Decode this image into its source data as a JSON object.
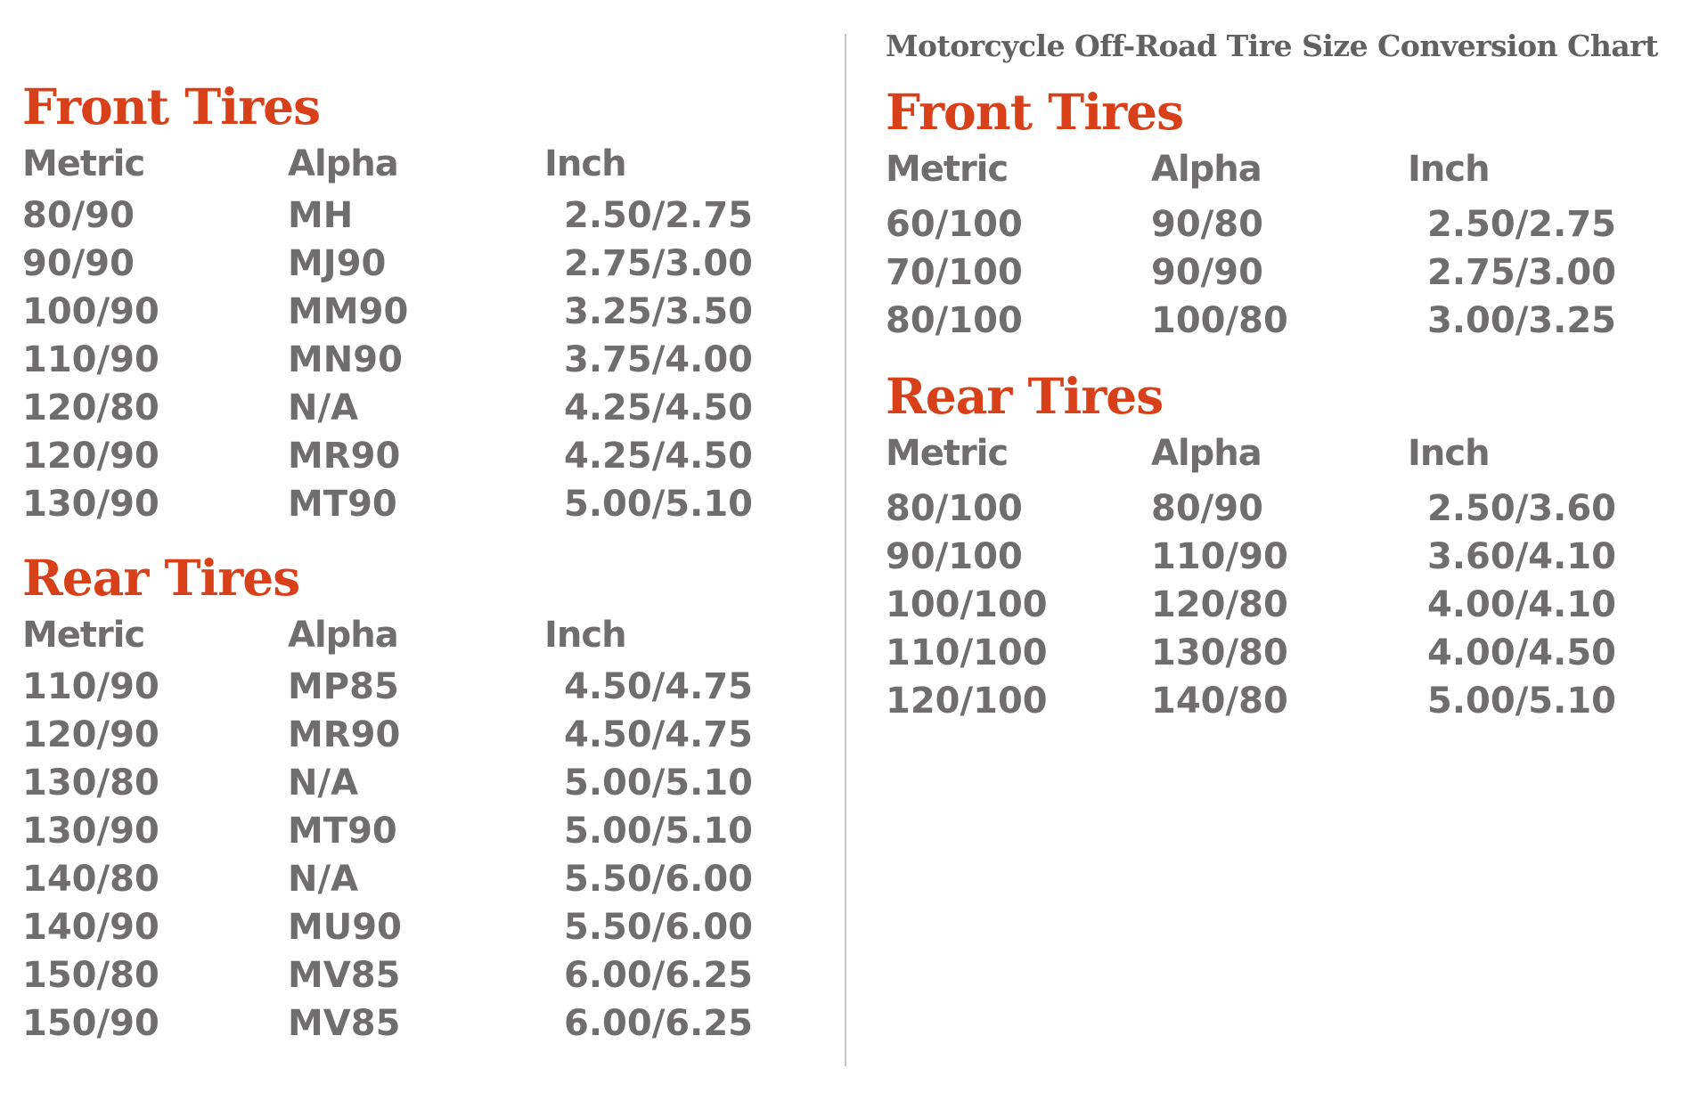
{
  "page": {
    "colors": {
      "accent_red": "#d8401a",
      "header_dark": "#2d2b2c",
      "data_gray": "#6f6d6e",
      "title_gray": "#616161",
      "divider_gray": "#c6c6c6"
    }
  },
  "left_panel": {
    "sections": [
      {
        "heading": "Front Tires",
        "columns": [
          "Metric",
          "Alpha",
          "Inch"
        ],
        "rows": [
          [
            "80/90",
            "MH",
            "2.50/2.75"
          ],
          [
            "90/90",
            "MJ90",
            "2.75/3.00"
          ],
          [
            "100/90",
            "MM90",
            "3.25/3.50"
          ],
          [
            "110/90",
            "MN90",
            "3.75/4.00"
          ],
          [
            "120/80",
            "N/A",
            "4.25/4.50"
          ],
          [
            "120/90",
            "MR90",
            "4.25/4.50"
          ],
          [
            "130/90",
            "MT90",
            "5.00/5.10"
          ]
        ]
      },
      {
        "heading": "Rear Tires",
        "columns": [
          "Metric",
          "Alpha",
          "Inch"
        ],
        "rows": [
          [
            "110/90",
            "MP85",
            "4.50/4.75"
          ],
          [
            "120/90",
            "MR90",
            "4.50/4.75"
          ],
          [
            "130/80",
            "N/A",
            "5.00/5.10"
          ],
          [
            "130/90",
            "MT90",
            "5.00/5.10"
          ],
          [
            "140/80",
            "N/A",
            "5.50/6.00"
          ],
          [
            "140/90",
            "MU90",
            "5.50/6.00"
          ],
          [
            "150/80",
            "MV85",
            "6.00/6.25"
          ],
          [
            "150/90",
            "MV85",
            "6.00/6.25"
          ]
        ]
      }
    ]
  },
  "right_panel": {
    "title": "Motorcycle Off-Road Tire Size Conversion Chart",
    "sections": [
      {
        "heading": "Front Tires",
        "columns": [
          "Metric",
          "Alpha",
          "Inch"
        ],
        "rows": [
          [
            "60/100",
            "90/80",
            "2.50/2.75"
          ],
          [
            "70/100",
            "90/90",
            "2.75/3.00"
          ],
          [
            "80/100",
            "100/80",
            "3.00/3.25"
          ]
        ]
      },
      {
        "heading": "Rear Tires",
        "columns": [
          "Metric",
          "Alpha",
          "Inch"
        ],
        "rows": [
          [
            "80/100",
            "80/90",
            "2.50/3.60"
          ],
          [
            "90/100",
            "110/90",
            "3.60/4.10"
          ],
          [
            "100/100",
            "120/80",
            "4.00/4.10"
          ],
          [
            "110/100",
            "130/80",
            "4.00/4.50"
          ],
          [
            "120/100",
            "140/80",
            "5.00/5.10"
          ]
        ]
      }
    ]
  }
}
